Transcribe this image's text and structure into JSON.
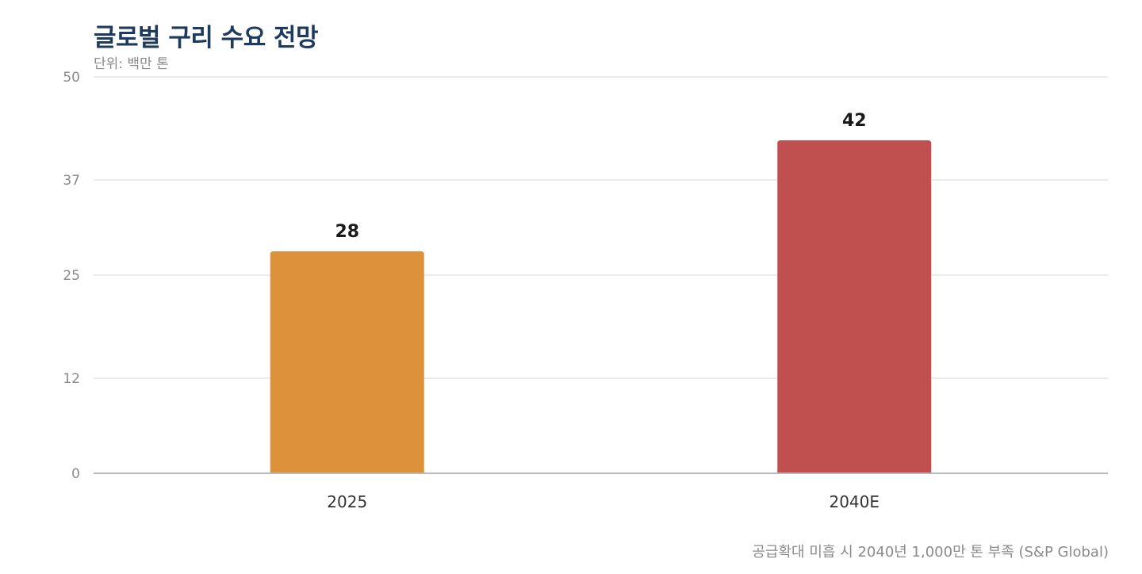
{
  "chart_data": {
    "type": "bar",
    "title": "글로벌 구리 수요 전망",
    "subtitle": "단위: 백만 톤",
    "categories": [
      "2025",
      "2040E"
    ],
    "values": [
      28,
      42
    ],
    "data_labels": [
      "28",
      "42"
    ],
    "bar_colors": [
      "#de913b",
      "#c0504f"
    ],
    "ylim": [
      0,
      50
    ],
    "yticks": [
      0,
      12,
      25,
      37,
      50
    ],
    "ytick_labels": [
      "0",
      "12",
      "25",
      "37",
      "50"
    ],
    "grid": true,
    "xlabel": "",
    "ylabel": "",
    "footnote": "공급확대 미흡 시 2040년 1,000만 톤 부족 (S&P Global)"
  }
}
